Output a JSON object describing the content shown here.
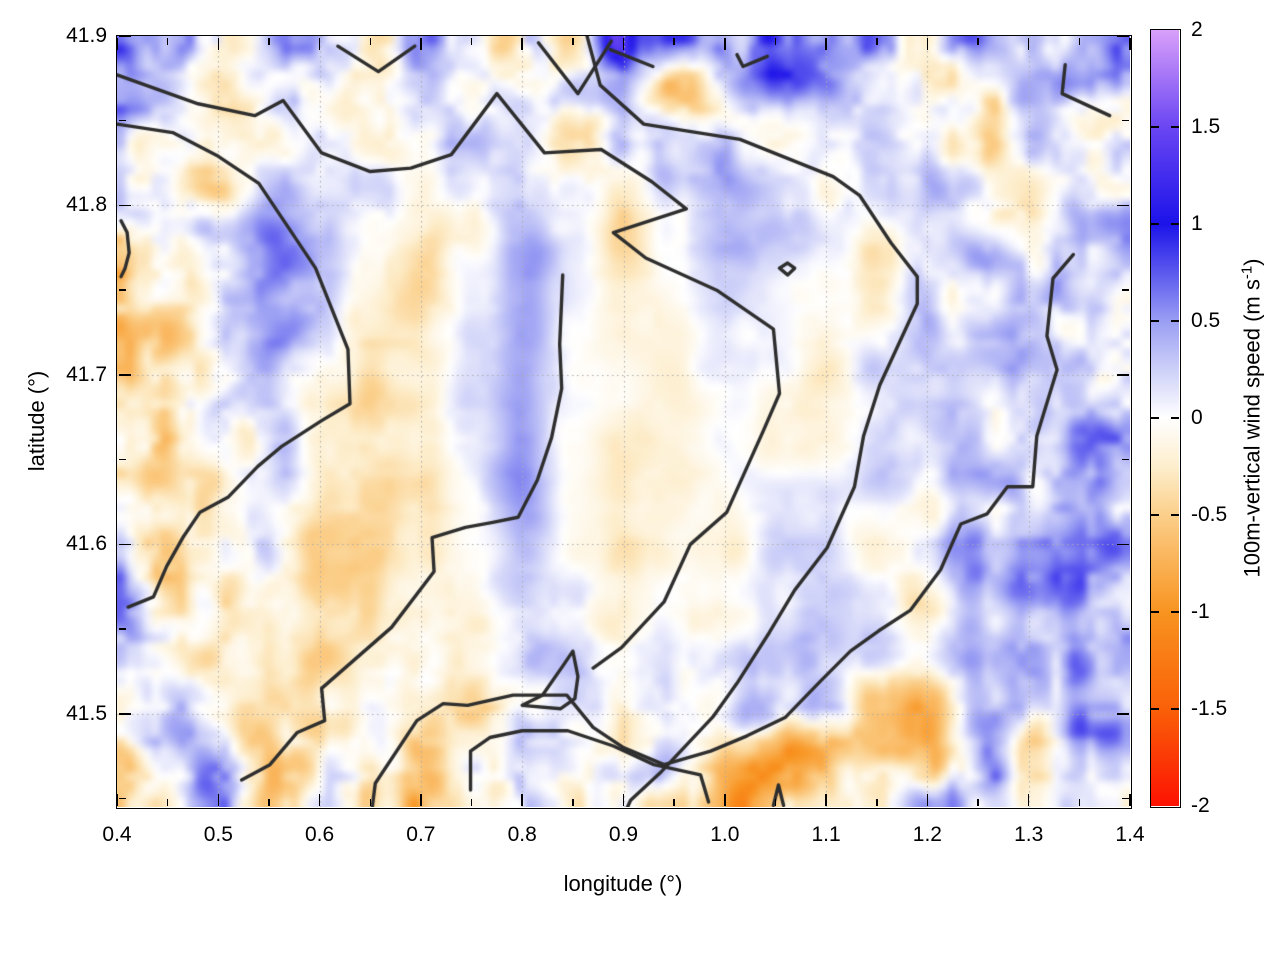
{
  "figure": {
    "background": "#ffffff",
    "text_color": "#000000",
    "contour_color": "#2e2e2e",
    "grid_dot_color": "#ababab",
    "frame_color": "#000000"
  },
  "x_axis": {
    "label": "longitude (°)",
    "tick_labels": [
      "0.4",
      "0.5",
      "0.6",
      "0.7",
      "0.8",
      "0.9",
      "1.0",
      "1.1",
      "1.2",
      "1.3",
      "1.4"
    ],
    "tick_values": [
      0.4,
      0.5,
      0.6,
      0.7,
      0.8,
      0.9,
      1.0,
      1.1,
      1.2,
      1.3,
      1.4
    ],
    "minor_ticks": [
      0.45,
      0.55,
      0.65,
      0.75,
      0.85,
      0.95,
      1.05,
      1.15,
      1.25,
      1.35
    ],
    "range": [
      0.4,
      1.4
    ]
  },
  "y_axis": {
    "label": "latitude (°)",
    "tick_labels": [
      "41.5",
      "41.6",
      "41.7",
      "41.8",
      "41.9"
    ],
    "tick_values": [
      41.5,
      41.6,
      41.7,
      41.8,
      41.9
    ],
    "minor_ticks": [
      41.45,
      41.55,
      41.65,
      41.75,
      41.85
    ],
    "range": [
      41.445,
      41.9
    ]
  },
  "colorbar": {
    "label_pre": "100m-vertical wind speed (m s",
    "label_sup": "-1",
    "label_post": ")",
    "tick_labels": [
      "2",
      "1.5",
      "1",
      "0.5",
      "0",
      "-0.5",
      "-1",
      "-1.5",
      "-2"
    ],
    "tick_values": [
      2,
      1.5,
      1,
      0.5,
      0,
      -0.5,
      -1,
      -1.5,
      -2
    ],
    "range": [
      -2,
      2
    ]
  },
  "chart_data": {
    "type": "heatmap",
    "title": "",
    "xlabel": "longitude (°)",
    "ylabel": "latitude (°)",
    "colorbar_label": "100m-vertical wind speed (m s^-1)",
    "x_range": [
      0.4,
      1.4
    ],
    "y_range": [
      41.445,
      41.9
    ],
    "value_range": [
      -2,
      2
    ],
    "lon": [
      0.4,
      0.45,
      0.5,
      0.55,
      0.6,
      0.65,
      0.7,
      0.75,
      0.8,
      0.85,
      0.9,
      0.95,
      1.0,
      1.05,
      1.1,
      1.15,
      1.2,
      1.25,
      1.3,
      1.35,
      1.4
    ],
    "lat": [
      41.9,
      41.87,
      41.84,
      41.81,
      41.78,
      41.75,
      41.72,
      41.69,
      41.66,
      41.63,
      41.6,
      41.57,
      41.54,
      41.51,
      41.48,
      41.45
    ],
    "values": [
      [
        0.3,
        0.1,
        -0.15,
        0.2,
        0.3,
        -0.5,
        0.25,
        0.15,
        -0.1,
        -0.5,
        1.4,
        0.6,
        0.3,
        0.85,
        0.8,
        0.3,
        0.1,
        0.15,
        0.1,
        0.25,
        0.3
      ],
      [
        0.2,
        0.05,
        -0.2,
        0.1,
        0.15,
        -0.35,
        0.1,
        0.1,
        -0.15,
        0.2,
        0.5,
        -0.7,
        0.2,
        0.5,
        0.4,
        0.15,
        0.05,
        -0.2,
        0.3,
        0.4,
        0.2
      ],
      [
        0.15,
        0.2,
        -0.3,
        -0.1,
        0.35,
        -0.2,
        0.15,
        0.2,
        0.1,
        -0.4,
        0.2,
        0.3,
        0.1,
        -0.2,
        0.2,
        0.1,
        -0.15,
        -0.3,
        0.2,
        0.15,
        -0.2
      ],
      [
        0.25,
        0.1,
        -0.25,
        0.45,
        0.3,
        0.15,
        -0.3,
        0.1,
        0.3,
        0.2,
        -0.25,
        0.15,
        0.3,
        0.1,
        -0.2,
        0.2,
        0.3,
        0.1,
        -0.2,
        0.3,
        0.2
      ],
      [
        -0.4,
        -0.2,
        0.3,
        0.55,
        0.3,
        0.1,
        -0.35,
        -0.1,
        0.4,
        0.15,
        -0.3,
        0.1,
        0.5,
        0.3,
        0.1,
        -0.25,
        0.1,
        0.3,
        -0.1,
        0.2,
        0.4
      ],
      [
        -0.5,
        -0.3,
        0.2,
        0.55,
        0.2,
        -0.2,
        -0.4,
        0.1,
        0.45,
        0.1,
        -0.2,
        0.0,
        0.2,
        0.1,
        -0.1,
        -0.2,
        0.2,
        0.1,
        0.3,
        0.25,
        0.1
      ],
      [
        -0.55,
        -0.35,
        0.15,
        0.5,
        0.1,
        -0.3,
        -0.3,
        0.15,
        0.5,
        0.05,
        -0.15,
        -0.1,
        0.1,
        0.05,
        -0.2,
        0.1,
        0.3,
        0.2,
        0.35,
        0.3,
        0.15
      ],
      [
        -0.3,
        -0.4,
        0.1,
        0.4,
        0.0,
        -0.35,
        -0.2,
        0.2,
        0.55,
        0.0,
        -0.1,
        -0.15,
        0.05,
        -0.1,
        -0.25,
        0.15,
        0.25,
        0.3,
        0.2,
        0.4,
        0.3
      ],
      [
        -0.2,
        -0.45,
        -0.1,
        0.3,
        -0.1,
        -0.4,
        -0.25,
        0.1,
        0.5,
        -0.05,
        -0.2,
        -0.2,
        0.0,
        -0.15,
        -0.2,
        0.2,
        0.15,
        0.35,
        0.15,
        0.45,
        0.35
      ],
      [
        -0.1,
        -0.5,
        -0.2,
        0.2,
        -0.2,
        -0.45,
        -0.3,
        0.05,
        0.45,
        -0.1,
        -0.25,
        -0.15,
        -0.1,
        0.2,
        0.1,
        0.25,
        -0.1,
        0.4,
        0.1,
        0.5,
        0.6
      ],
      [
        0.1,
        -0.4,
        -0.3,
        0.1,
        -0.3,
        -0.5,
        -0.2,
        0.0,
        0.4,
        -0.05,
        -0.3,
        -0.1,
        -0.2,
        0.3,
        0.2,
        -0.2,
        0.2,
        0.45,
        0.3,
        0.65,
        0.5
      ],
      [
        0.3,
        -0.2,
        -0.4,
        -0.1,
        -0.4,
        -0.3,
        -0.1,
        -0.1,
        0.3,
        0.1,
        -0.2,
        0.0,
        -0.15,
        0.1,
        0.3,
        0.1,
        -0.3,
        0.3,
        0.5,
        0.4,
        0.2
      ],
      [
        0.2,
        0.1,
        -0.3,
        -0.2,
        -0.45,
        -0.2,
        0.0,
        -0.2,
        0.2,
        0.15,
        -0.1,
        0.1,
        0.0,
        0.25,
        0.4,
        0.25,
        0.0,
        0.5,
        0.6,
        0.3,
        0.4
      ],
      [
        0.15,
        0.25,
        -0.2,
        -0.3,
        -0.35,
        -0.1,
        0.1,
        -0.25,
        0.1,
        0.2,
        0.0,
        0.2,
        0.1,
        0.4,
        0.2,
        -0.5,
        -0.6,
        0.3,
        0.2,
        0.5,
        0.3
      ],
      [
        -0.2,
        0.3,
        0.2,
        -0.4,
        -0.2,
        0.0,
        -0.3,
        0.1,
        0.2,
        0.1,
        -0.15,
        0.1,
        -0.3,
        -0.6,
        -0.9,
        -0.8,
        -0.5,
        0.2,
        -0.3,
        0.2,
        0.4
      ],
      [
        -0.5,
        -0.1,
        0.4,
        -0.3,
        0.1,
        -0.2,
        -0.4,
        -0.1,
        0.15,
        0.05,
        -0.2,
        -0.4,
        -0.7,
        -0.5,
        -0.3,
        -0.2,
        0.3,
        0.25,
        -0.2,
        0.3,
        0.2
      ]
    ],
    "colormap": [
      {
        "v": -2,
        "color": "#fc1202"
      },
      {
        "v": -1.5,
        "color": "#fa6008"
      },
      {
        "v": -1,
        "color": "#f89420"
      },
      {
        "v": -0.5,
        "color": "#fbcf8a"
      },
      {
        "v": -0.25,
        "color": "#fdeecd"
      },
      {
        "v": 0,
        "color": "#ffffff"
      },
      {
        "v": 0.25,
        "color": "#cdd0f8"
      },
      {
        "v": 0.5,
        "color": "#9a9ef3"
      },
      {
        "v": 1,
        "color": "#1c13e9"
      },
      {
        "v": 1.5,
        "color": "#6a46f3"
      },
      {
        "v": 2,
        "color": "#d9a0fa"
      }
    ],
    "contour_level": 0,
    "contours": [
      [
        [
          0.4,
          41.877
        ],
        [
          0.48,
          41.86
        ],
        [
          0.536,
          41.853
        ],
        [
          0.564,
          41.862
        ],
        [
          0.602,
          41.831
        ],
        [
          0.65,
          41.82
        ],
        [
          0.69,
          41.822
        ],
        [
          0.73,
          41.83
        ],
        [
          0.775,
          41.866
        ],
        [
          0.822,
          41.831
        ],
        [
          0.878,
          41.833
        ],
        [
          0.928,
          41.814
        ],
        [
          0.962,
          41.798
        ],
        [
          0.89,
          41.784
        ],
        [
          0.922,
          41.769
        ],
        [
          0.992,
          41.75
        ],
        [
          1.048,
          41.727
        ],
        [
          1.054,
          41.689
        ],
        [
          1.038,
          41.667
        ],
        [
          1.002,
          41.619
        ],
        [
          0.966,
          41.6
        ],
        [
          0.94,
          41.566
        ],
        [
          0.898,
          41.539
        ],
        [
          0.87,
          41.527
        ]
      ],
      [
        [
          0.4,
          41.848
        ],
        [
          0.455,
          41.843
        ],
        [
          0.5,
          41.829
        ],
        [
          0.54,
          41.813
        ],
        [
          0.596,
          41.763
        ],
        [
          0.628,
          41.715
        ],
        [
          0.63,
          41.683
        ],
        [
          0.602,
          41.673
        ],
        [
          0.563,
          41.658
        ],
        [
          0.539,
          41.646
        ],
        [
          0.51,
          41.628
        ],
        [
          0.482,
          41.619
        ],
        [
          0.465,
          41.604
        ],
        [
          0.449,
          41.587
        ],
        [
          0.436,
          41.569
        ],
        [
          0.411,
          41.563
        ]
      ],
      [
        [
          0.864,
          41.9
        ],
        [
          0.877,
          41.871
        ],
        [
          0.92,
          41.848
        ],
        [
          1.015,
          41.839
        ],
        [
          1.107,
          41.817
        ],
        [
          1.133,
          41.806
        ],
        [
          1.164,
          41.778
        ],
        [
          1.19,
          41.758
        ],
        [
          1.19,
          41.742
        ],
        [
          1.153,
          41.694
        ],
        [
          1.137,
          41.664
        ],
        [
          1.128,
          41.634
        ],
        [
          1.101,
          41.598
        ],
        [
          1.069,
          41.573
        ],
        [
          1.044,
          41.548
        ],
        [
          1.012,
          41.518
        ],
        [
          0.988,
          41.498
        ],
        [
          0.936,
          41.465
        ],
        [
          0.907,
          41.449
        ],
        [
          0.904,
          41.445
        ]
      ],
      [
        [
          0.618,
          41.894
        ],
        [
          0.658,
          41.879
        ],
        [
          0.694,
          41.894
        ]
      ],
      [
        [
          0.816,
          41.896
        ],
        [
          0.855,
          41.866
        ],
        [
          0.888,
          41.897
        ]
      ],
      [
        [
          0.887,
          41.892
        ],
        [
          0.929,
          41.882
        ]
      ],
      [
        [
          1.012,
          41.889
        ],
        [
          1.018,
          41.882
        ],
        [
          1.042,
          41.888
        ]
      ],
      [
        [
          0.84,
          41.759
        ],
        [
          0.837,
          41.718
        ],
        [
          0.839,
          41.692
        ],
        [
          0.829,
          41.663
        ],
        [
          0.815,
          41.638
        ],
        [
          0.796,
          41.616
        ],
        [
          0.771,
          41.613
        ],
        [
          0.744,
          41.61
        ],
        [
          0.711,
          41.604
        ],
        [
          0.713,
          41.584
        ],
        [
          0.671,
          41.551
        ],
        [
          0.602,
          41.515
        ],
        [
          0.605,
          41.496
        ],
        [
          0.578,
          41.489
        ],
        [
          0.551,
          41.47
        ],
        [
          0.523,
          41.461
        ]
      ],
      [
        [
          1.344,
          41.771
        ],
        [
          1.324,
          41.757
        ],
        [
          1.318,
          41.723
        ],
        [
          1.328,
          41.703
        ],
        [
          1.308,
          41.664
        ],
        [
          1.304,
          41.634
        ],
        [
          1.279,
          41.634
        ],
        [
          1.259,
          41.618
        ],
        [
          1.233,
          41.612
        ],
        [
          1.213,
          41.585
        ],
        [
          1.183,
          41.561
        ],
        [
          1.152,
          41.549
        ],
        [
          1.124,
          41.537
        ],
        [
          1.094,
          41.519
        ],
        [
          1.06,
          41.498
        ],
        [
          1.022,
          41.487
        ],
        [
          0.986,
          41.478
        ],
        [
          0.94,
          41.47
        ],
        [
          0.9,
          41.48
        ],
        [
          0.87,
          41.492
        ],
        [
          0.844,
          41.511
        ],
        [
          0.791,
          41.511
        ],
        [
          0.746,
          41.505
        ],
        [
          0.722,
          41.506
        ],
        [
          0.696,
          41.496
        ],
        [
          0.655,
          41.459
        ],
        [
          0.652,
          41.445
        ]
      ],
      [
        [
          0.749,
          41.455
        ],
        [
          0.749,
          41.478
        ],
        [
          0.768,
          41.486
        ],
        [
          0.8,
          41.49
        ],
        [
          0.845,
          41.49
        ],
        [
          0.89,
          41.481
        ],
        [
          0.93,
          41.47
        ],
        [
          0.976,
          41.464
        ],
        [
          0.984,
          41.448
        ]
      ],
      [
        [
          1.048,
          41.446
        ],
        [
          1.053,
          41.458
        ],
        [
          1.058,
          41.446
        ]
      ],
      [
        [
          0.8,
          41.505
        ],
        [
          0.838,
          41.503
        ],
        [
          0.852,
          41.509
        ],
        [
          0.855,
          41.522
        ],
        [
          0.85,
          41.537
        ],
        [
          0.841,
          41.529
        ],
        [
          0.82,
          41.511
        ],
        [
          0.8,
          41.505
        ]
      ],
      [
        [
          1.054,
          41.763
        ],
        [
          1.062,
          41.766
        ],
        [
          1.069,
          41.763
        ],
        [
          1.062,
          41.759
        ],
        [
          1.054,
          41.763
        ]
      ],
      [
        [
          1.336,
          41.883
        ],
        [
          1.333,
          41.866
        ],
        [
          1.38,
          41.853
        ]
      ],
      [
        [
          0.404,
          41.791
        ],
        [
          0.41,
          41.784
        ],
        [
          0.412,
          41.772
        ],
        [
          0.408,
          41.763
        ],
        [
          0.404,
          41.758
        ]
      ]
    ]
  }
}
